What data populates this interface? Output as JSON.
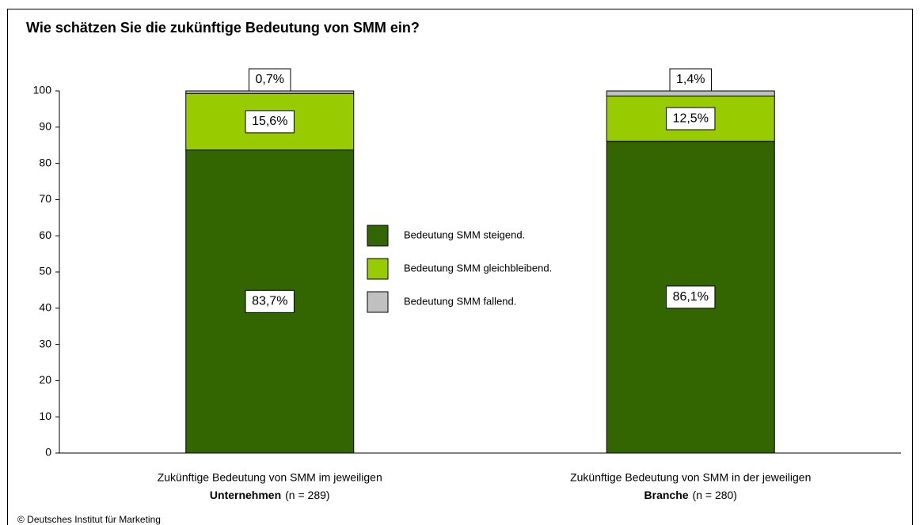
{
  "chart_data": {
    "type": "stacked_bar",
    "title": "Wie schätzen Sie die zukünftige Bedeutung von SMM ein?",
    "categories": [
      [
        "Zukünftige Bedeutung von SMM im jeweiligen",
        "Unternehmen",
        "(n = 289)"
      ],
      [
        "Zukünftige Bedeutung von SMM in der jeweiligen",
        "Branche",
        "(n = 280)"
      ]
    ],
    "series": [
      {
        "name": "Bedeutung SMM steigend.",
        "color": "#336600",
        "values": [
          83.7,
          86.1
        ],
        "value_labels": [
          "83,7%",
          "86,1%"
        ]
      },
      {
        "name": "Bedeutung SMM gleichbleibend.",
        "color": "#99cc00",
        "values": [
          15.6,
          12.5
        ],
        "value_labels": [
          "15,6%",
          "12,5%"
        ]
      },
      {
        "name": "Bedeutung SMM fallend.",
        "color": "#c0c0c0",
        "values": [
          0.7,
          1.4
        ],
        "value_labels": [
          "0,7%",
          "1,4%"
        ]
      }
    ],
    "ylim": [
      0,
      100
    ],
    "yticks": [
      0,
      10,
      20,
      30,
      40,
      50,
      60,
      70,
      80,
      90,
      100
    ],
    "footer": "© Deutsches Institut für Marketing"
  }
}
